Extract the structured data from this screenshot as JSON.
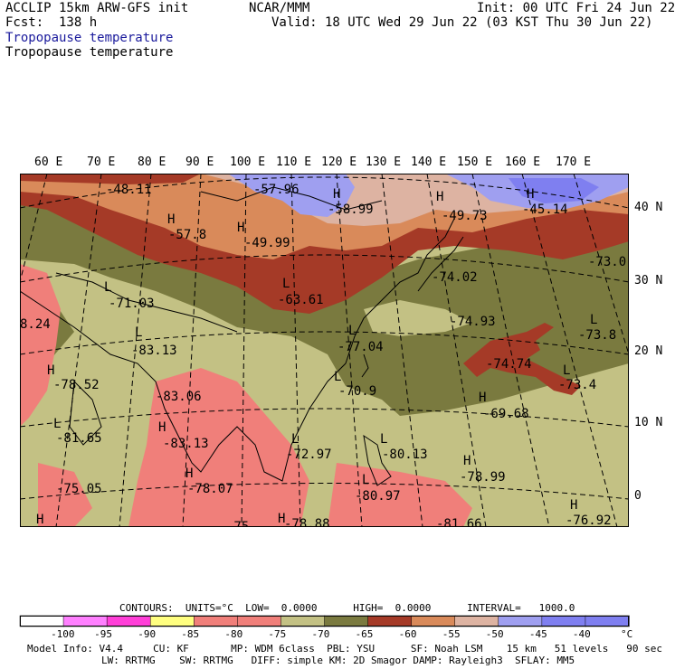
{
  "header": {
    "line1_left": "ACCLIP 15km ARW-GFS init",
    "line1_center": "NCAR/MMM",
    "line1_right": "Init: 00 UTC Fri 24 Jun 22",
    "line2_left": "Fcst:  138 h",
    "line2_right": "Valid: 18 UTC Wed 29 Jun 22 (03 KST Thu 30 Jun 22)",
    "field_title_1": "Tropopause temperature",
    "field_title_2": "Tropopause temperature"
  },
  "longitude_labels": [
    "60 E",
    "70 E",
    "80 E",
    "90 E",
    "100 E",
    "110 E",
    "120 E",
    "130 E",
    "140 E",
    "150 E",
    "160 E",
    "170 E"
  ],
  "latitude_labels": [
    "40 N",
    "30 N",
    "20 N",
    "10 N",
    "0"
  ],
  "map_labels": [
    {
      "text": "-48.11"
    },
    {
      "text": "-57.96"
    },
    {
      "text": "H"
    },
    {
      "text": "-58.99"
    },
    {
      "text": "H"
    },
    {
      "text": "-49.73"
    },
    {
      "text": "H"
    },
    {
      "text": "-45.14"
    },
    {
      "text": "H"
    },
    {
      "text": "-57.8"
    },
    {
      "text": "H"
    },
    {
      "text": "-49.99"
    },
    {
      "text": "-73.0"
    },
    {
      "text": "-74.02"
    },
    {
      "text": "L"
    },
    {
      "text": "-63.61"
    },
    {
      "text": "L"
    },
    {
      "text": "-71.03"
    },
    {
      "text": "-74.93"
    },
    {
      "text": "L"
    },
    {
      "text": "-73.8"
    },
    {
      "text": "8.24"
    },
    {
      "text": "L"
    },
    {
      "text": "-77.04"
    },
    {
      "text": "L"
    },
    {
      "text": "-83.13"
    },
    {
      "text": "-74.74"
    },
    {
      "text": "H"
    },
    {
      "text": "L"
    },
    {
      "text": "-73.4"
    },
    {
      "text": "-78.52"
    },
    {
      "text": "-83.06"
    },
    {
      "text": "L"
    },
    {
      "text": "-70.9"
    },
    {
      "text": "H"
    },
    {
      "text": "-69.68"
    },
    {
      "text": "L"
    },
    {
      "text": "-81.65"
    },
    {
      "text": "H"
    },
    {
      "text": "-83.13"
    },
    {
      "text": "L"
    },
    {
      "text": "-72.97"
    },
    {
      "text": "-80.13"
    },
    {
      "text": "L"
    },
    {
      "text": "-78.99"
    },
    {
      "text": "H"
    },
    {
      "text": "-75.05"
    },
    {
      "text": "H"
    },
    {
      "text": "-78.07"
    },
    {
      "text": "L"
    },
    {
      "text": "-80.97"
    },
    {
      "text": "H"
    },
    {
      "text": "H"
    },
    {
      "text": "-76.92"
    },
    {
      "text": "H"
    },
    {
      "text": "-78.88"
    },
    {
      "text": "-81.66"
    },
    {
      "text": "-75"
    }
  ],
  "legend": {
    "contours_line": "CONTOURS:  UNITS=°C  LOW=  0.0000      HIGH=  0.0000      INTERVAL=   1000.0",
    "bins": [
      {
        "color": "#ffffff"
      },
      {
        "color": "#ff80ff"
      },
      {
        "color": "#ff3fd8"
      },
      {
        "color": "#ffff80"
      },
      {
        "color": "#f07f7a"
      },
      {
        "color": "#f07f7a"
      },
      {
        "color": "#c3c184"
      },
      {
        "color": "#7a7a3f"
      },
      {
        "color": "#a53a27"
      },
      {
        "color": "#d98a5a"
      },
      {
        "color": "#ddb3a2"
      },
      {
        "color": "#9f9ff0"
      },
      {
        "color": "#7f7ff0"
      },
      {
        "color": "#7f7ff0"
      }
    ],
    "tick_labels": [
      "-100",
      "-95",
      "-90",
      "-85",
      "-80",
      "-75",
      "-70",
      "-65",
      "-60",
      "-55",
      "-50",
      "-45",
      "-40"
    ],
    "unit": "°C"
  },
  "model_info": {
    "line1": "Model Info: V4.4     CU: KF       MP: WDM 6class  PBL: YSU      SF: Noah LSM    15 km   51 levels   90 sec",
    "line2": "LW: RRTMG    SW: RRTMG   DIFF: simple KM: 2D Smagor DAMP: Rayleigh3  SFLAY: MM5"
  }
}
